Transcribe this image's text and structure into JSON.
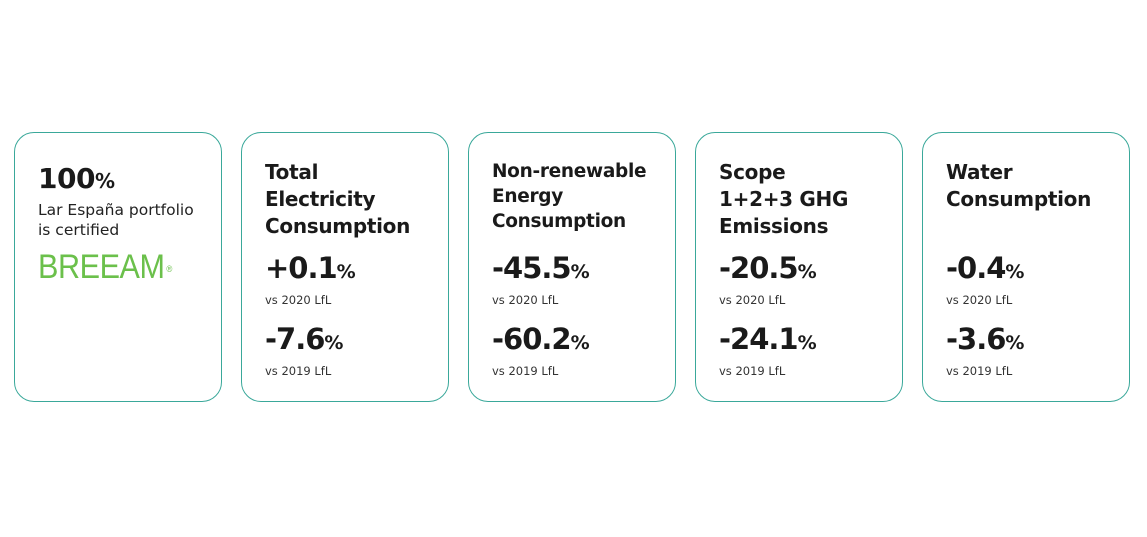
{
  "certification": {
    "value": "100",
    "unit": "%",
    "description_line1": "Lar España portfolio",
    "description_line2": "is certified",
    "logo_text": "BREEAM",
    "logo_mark": "®",
    "logo_color": "#6bc04b"
  },
  "border_color": "#3aa89a",
  "metrics": [
    {
      "title_lines": [
        "Total",
        "Electricity",
        "Consumption"
      ],
      "values": [
        {
          "value": "+0.1",
          "unit": "%",
          "label": "vs 2020 LfL"
        },
        {
          "value": "-7.6",
          "unit": "%",
          "label": "vs 2019 LfL"
        }
      ]
    },
    {
      "title_lines": [
        "Non-renewable",
        "Energy",
        "Consumption"
      ],
      "values": [
        {
          "value": "-45.5",
          "unit": "%",
          "label": "vs 2020 LfL"
        },
        {
          "value": "-60.2",
          "unit": "%",
          "label": "vs 2019 LfL"
        }
      ]
    },
    {
      "title_lines": [
        "Scope",
        "1+2+3 GHG",
        "Emissions"
      ],
      "values": [
        {
          "value": "-20.5",
          "unit": "%",
          "label": "vs 2020 LfL"
        },
        {
          "value": "-24.1",
          "unit": "%",
          "label": "vs 2019 LfL"
        }
      ]
    },
    {
      "title_lines": [
        "Water",
        "Consumption"
      ],
      "values": [
        {
          "value": "-0.4",
          "unit": "%",
          "label": "vs 2020 LfL"
        },
        {
          "value": "-3.6",
          "unit": "%",
          "label": "vs 2019 LfL"
        }
      ]
    }
  ]
}
